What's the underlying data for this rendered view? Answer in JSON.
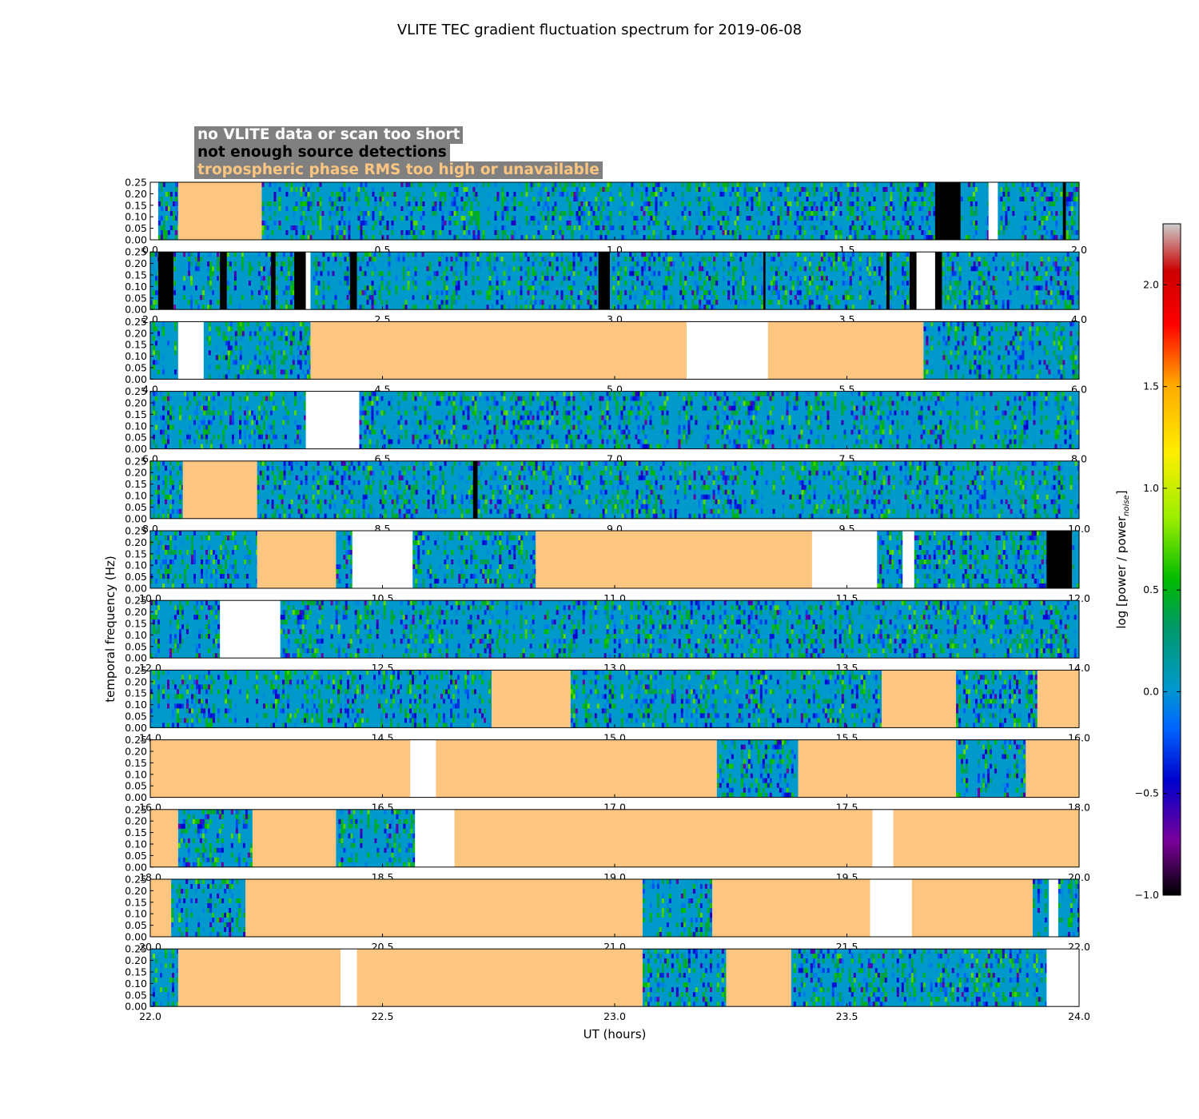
{
  "chart_data": {
    "type": "heatmap",
    "title": "VLITE TEC gradient fluctuation spectrum for 2019-06-08",
    "xlabel": "UT (hours)",
    "ylabel": "temporal frequency (Hz)",
    "colorbar": {
      "label": "log [power / power",
      "label_sub": "noise",
      "label_close": "]",
      "range": [
        -1.0,
        2.3
      ],
      "ticks": [
        "−1.0",
        "−0.5",
        "0.0",
        "0.5",
        "1.0",
        "1.5",
        "2.0"
      ],
      "tick_values": [
        -1.0,
        -0.5,
        0.0,
        0.5,
        1.0,
        1.5,
        2.0
      ],
      "colors": [
        "#000000",
        "#7a0099",
        "#0000cc",
        "#0066ff",
        "#0099cc",
        "#009966",
        "#00bb00",
        "#99ee00",
        "#ffee00",
        "#ffaa00",
        "#ff0000",
        "#cc0000",
        "#cccccc"
      ]
    },
    "y_ticks": [
      "0.00",
      "0.05",
      "0.10",
      "0.15",
      "0.20",
      "0.25"
    ],
    "ylim": [
      0,
      0.25
    ],
    "legend": [
      {
        "label": "no VLITE data or scan too short",
        "color": "#ffffff"
      },
      {
        "label": "not enough source detections",
        "color": "#000000"
      },
      {
        "label": "tropospheric phase RMS too high or unavailable",
        "color": "#fdc680"
      }
    ],
    "panels": [
      {
        "xlim": [
          0.0,
          2.0
        ],
        "ticks": [
          "0.0",
          "0.5",
          "1.0",
          "1.5",
          "2.0"
        ],
        "segments": [
          {
            "start": 0.0,
            "end": 0.017,
            "type": "nodata"
          },
          {
            "start": 0.017,
            "end": 0.06,
            "type": "data"
          },
          {
            "start": 0.06,
            "end": 0.24,
            "type": "tropo"
          },
          {
            "start": 0.24,
            "end": 1.69,
            "type": "data"
          },
          {
            "start": 1.69,
            "end": 1.745,
            "type": "nodet"
          },
          {
            "start": 1.745,
            "end": 1.805,
            "type": "data"
          },
          {
            "start": 1.805,
            "end": 1.825,
            "type": "nodata"
          },
          {
            "start": 1.825,
            "end": 1.965,
            "type": "data"
          },
          {
            "start": 1.965,
            "end": 1.972,
            "type": "nodet"
          },
          {
            "start": 1.972,
            "end": 2.0,
            "type": "data"
          }
        ]
      },
      {
        "xlim": [
          2.0,
          4.0
        ],
        "ticks": [
          "2.0",
          "2.5",
          "3.0",
          "3.5",
          "4.0"
        ],
        "segments": [
          {
            "start": 2.0,
            "end": 2.017,
            "type": "data"
          },
          {
            "start": 2.017,
            "end": 2.05,
            "type": "nodet"
          },
          {
            "start": 2.05,
            "end": 2.15,
            "type": "data"
          },
          {
            "start": 2.15,
            "end": 2.165,
            "type": "nodet"
          },
          {
            "start": 2.165,
            "end": 2.26,
            "type": "data"
          },
          {
            "start": 2.26,
            "end": 2.27,
            "type": "nodet"
          },
          {
            "start": 2.27,
            "end": 2.31,
            "type": "data"
          },
          {
            "start": 2.31,
            "end": 2.335,
            "type": "nodet"
          },
          {
            "start": 2.335,
            "end": 2.345,
            "type": "nodata"
          },
          {
            "start": 2.345,
            "end": 2.43,
            "type": "data"
          },
          {
            "start": 2.43,
            "end": 2.445,
            "type": "nodet"
          },
          {
            "start": 2.445,
            "end": 2.965,
            "type": "data"
          },
          {
            "start": 2.965,
            "end": 2.99,
            "type": "nodet"
          },
          {
            "start": 2.99,
            "end": 3.32,
            "type": "data"
          },
          {
            "start": 3.32,
            "end": 3.325,
            "type": "nodet"
          },
          {
            "start": 3.325,
            "end": 3.585,
            "type": "data"
          },
          {
            "start": 3.585,
            "end": 3.592,
            "type": "nodet"
          },
          {
            "start": 3.592,
            "end": 3.635,
            "type": "data"
          },
          {
            "start": 3.635,
            "end": 3.65,
            "type": "nodet"
          },
          {
            "start": 3.65,
            "end": 3.69,
            "type": "nodata"
          },
          {
            "start": 3.69,
            "end": 3.705,
            "type": "nodet"
          },
          {
            "start": 3.705,
            "end": 4.0,
            "type": "data"
          }
        ]
      },
      {
        "xlim": [
          4.0,
          6.0
        ],
        "ticks": [
          "4.0",
          "4.5",
          "5.0",
          "5.5",
          "6.0"
        ],
        "segments": [
          {
            "start": 4.0,
            "end": 4.06,
            "type": "data"
          },
          {
            "start": 4.06,
            "end": 4.115,
            "type": "nodata"
          },
          {
            "start": 4.115,
            "end": 4.345,
            "type": "data"
          },
          {
            "start": 4.345,
            "end": 5.155,
            "type": "tropo"
          },
          {
            "start": 5.155,
            "end": 5.33,
            "type": "nodata"
          },
          {
            "start": 5.33,
            "end": 5.665,
            "type": "tropo"
          },
          {
            "start": 5.665,
            "end": 6.0,
            "type": "data"
          }
        ]
      },
      {
        "xlim": [
          6.0,
          8.0
        ],
        "ticks": [
          "6.0",
          "6.5",
          "7.0",
          "7.5",
          "8.0"
        ],
        "segments": [
          {
            "start": 6.0,
            "end": 6.335,
            "type": "data"
          },
          {
            "start": 6.335,
            "end": 6.45,
            "type": "nodata"
          },
          {
            "start": 6.45,
            "end": 8.0,
            "type": "data"
          }
        ]
      },
      {
        "xlim": [
          8.0,
          10.0
        ],
        "ticks": [
          "8.0",
          "8.5",
          "9.0",
          "9.5",
          "10.0"
        ],
        "segments": [
          {
            "start": 8.0,
            "end": 8.07,
            "type": "data"
          },
          {
            "start": 8.07,
            "end": 8.23,
            "type": "tropo"
          },
          {
            "start": 8.23,
            "end": 8.695,
            "type": "data"
          },
          {
            "start": 8.695,
            "end": 8.705,
            "type": "nodet"
          },
          {
            "start": 8.705,
            "end": 10.0,
            "type": "data"
          }
        ]
      },
      {
        "xlim": [
          10.0,
          12.0
        ],
        "ticks": [
          "10.0",
          "10.5",
          "11.0",
          "11.5",
          "12.0"
        ],
        "segments": [
          {
            "start": 10.0,
            "end": 10.23,
            "type": "data"
          },
          {
            "start": 10.23,
            "end": 10.4,
            "type": "tropo"
          },
          {
            "start": 10.4,
            "end": 10.435,
            "type": "data"
          },
          {
            "start": 10.435,
            "end": 10.565,
            "type": "nodata"
          },
          {
            "start": 10.565,
            "end": 10.83,
            "type": "data"
          },
          {
            "start": 10.83,
            "end": 11.425,
            "type": "tropo"
          },
          {
            "start": 11.425,
            "end": 11.565,
            "type": "nodata"
          },
          {
            "start": 11.565,
            "end": 11.62,
            "type": "data"
          },
          {
            "start": 11.62,
            "end": 11.645,
            "type": "nodata"
          },
          {
            "start": 11.645,
            "end": 11.93,
            "type": "data"
          },
          {
            "start": 11.93,
            "end": 11.985,
            "type": "nodet"
          },
          {
            "start": 11.985,
            "end": 12.0,
            "type": "data"
          }
        ]
      },
      {
        "xlim": [
          12.0,
          14.0
        ],
        "ticks": [
          "12.0",
          "12.5",
          "13.0",
          "13.5",
          "14.0"
        ],
        "segments": [
          {
            "start": 12.0,
            "end": 12.15,
            "type": "data"
          },
          {
            "start": 12.15,
            "end": 12.28,
            "type": "nodata"
          },
          {
            "start": 12.28,
            "end": 14.0,
            "type": "data"
          }
        ]
      },
      {
        "xlim": [
          14.0,
          16.0
        ],
        "ticks": [
          "14.0",
          "14.5",
          "15.0",
          "15.5",
          "16.0"
        ],
        "segments": [
          {
            "start": 14.0,
            "end": 14.735,
            "type": "data"
          },
          {
            "start": 14.735,
            "end": 14.905,
            "type": "tropo"
          },
          {
            "start": 14.905,
            "end": 15.575,
            "type": "data"
          },
          {
            "start": 15.575,
            "end": 15.735,
            "type": "tropo"
          },
          {
            "start": 15.735,
            "end": 15.91,
            "type": "data"
          },
          {
            "start": 15.91,
            "end": 16.0,
            "type": "tropo"
          }
        ]
      },
      {
        "xlim": [
          16.0,
          18.0
        ],
        "ticks": [
          "16.0",
          "16.5",
          "17.0",
          "17.5",
          "18.0"
        ],
        "segments": [
          {
            "start": 16.0,
            "end": 16.56,
            "type": "tropo"
          },
          {
            "start": 16.56,
            "end": 16.615,
            "type": "nodata"
          },
          {
            "start": 16.615,
            "end": 17.22,
            "type": "tropo"
          },
          {
            "start": 17.22,
            "end": 17.395,
            "type": "data"
          },
          {
            "start": 17.395,
            "end": 17.735,
            "type": "tropo"
          },
          {
            "start": 17.735,
            "end": 17.885,
            "type": "data"
          },
          {
            "start": 17.885,
            "end": 18.0,
            "type": "tropo"
          }
        ]
      },
      {
        "xlim": [
          18.0,
          20.0
        ],
        "ticks": [
          "18.0",
          "18.5",
          "19.0",
          "19.5",
          "20.0"
        ],
        "segments": [
          {
            "start": 18.0,
            "end": 18.06,
            "type": "tropo"
          },
          {
            "start": 18.06,
            "end": 18.22,
            "type": "data"
          },
          {
            "start": 18.22,
            "end": 18.4,
            "type": "tropo"
          },
          {
            "start": 18.4,
            "end": 18.57,
            "type": "data"
          },
          {
            "start": 18.57,
            "end": 18.655,
            "type": "nodata"
          },
          {
            "start": 18.655,
            "end": 19.555,
            "type": "tropo"
          },
          {
            "start": 19.555,
            "end": 19.6,
            "type": "nodata"
          },
          {
            "start": 19.6,
            "end": 20.0,
            "type": "tropo"
          }
        ]
      },
      {
        "xlim": [
          20.0,
          22.0
        ],
        "ticks": [
          "20.0",
          "20.5",
          "21.0",
          "21.5",
          "22.0"
        ],
        "segments": [
          {
            "start": 20.0,
            "end": 20.045,
            "type": "tropo"
          },
          {
            "start": 20.045,
            "end": 20.205,
            "type": "data"
          },
          {
            "start": 20.205,
            "end": 21.06,
            "type": "tropo"
          },
          {
            "start": 21.06,
            "end": 21.21,
            "type": "data"
          },
          {
            "start": 21.21,
            "end": 21.55,
            "type": "tropo"
          },
          {
            "start": 21.55,
            "end": 21.64,
            "type": "nodata"
          },
          {
            "start": 21.64,
            "end": 21.9,
            "type": "tropo"
          },
          {
            "start": 21.9,
            "end": 21.935,
            "type": "data"
          },
          {
            "start": 21.935,
            "end": 21.955,
            "type": "nodata"
          },
          {
            "start": 21.955,
            "end": 22.0,
            "type": "data"
          }
        ]
      },
      {
        "xlim": [
          22.0,
          24.0
        ],
        "ticks": [
          "22.0",
          "22.5",
          "23.0",
          "23.5",
          "24.0"
        ],
        "segments": [
          {
            "start": 22.0,
            "end": 22.06,
            "type": "data"
          },
          {
            "start": 22.06,
            "end": 22.41,
            "type": "tropo"
          },
          {
            "start": 22.41,
            "end": 22.445,
            "type": "nodata"
          },
          {
            "start": 22.445,
            "end": 23.06,
            "type": "tropo"
          },
          {
            "start": 23.06,
            "end": 23.24,
            "type": "data"
          },
          {
            "start": 23.24,
            "end": 23.38,
            "type": "tropo"
          },
          {
            "start": 23.38,
            "end": 23.93,
            "type": "data"
          },
          {
            "start": 23.93,
            "end": 24.0,
            "type": "nodata"
          }
        ]
      }
    ]
  }
}
